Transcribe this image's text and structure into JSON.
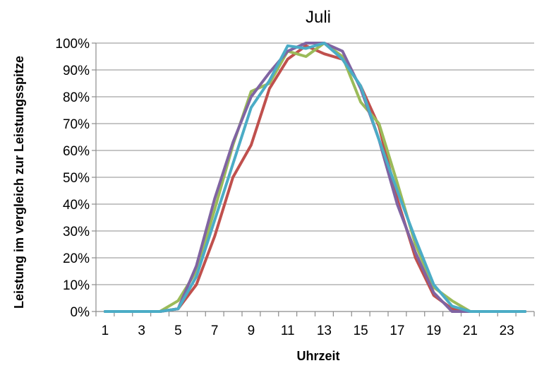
{
  "chart_data": {
    "type": "line",
    "title": "Juli",
    "xlabel": "Uhrzeit",
    "ylabel": "Leistung im vergleich zur Leistungsspitze",
    "x": [
      1,
      2,
      3,
      4,
      5,
      6,
      7,
      8,
      9,
      10,
      11,
      12,
      13,
      14,
      15,
      16,
      17,
      18,
      19,
      20,
      21,
      22,
      23,
      24
    ],
    "xtick_labels": [
      "1",
      "3",
      "5",
      "7",
      "9",
      "11",
      "13",
      "15",
      "17",
      "19",
      "21",
      "23"
    ],
    "ytick_labels": [
      "0%",
      "10%",
      "20%",
      "30%",
      "40%",
      "50%",
      "60%",
      "70%",
      "80%",
      "90%",
      "100%"
    ],
    "ylim": [
      0,
      1
    ],
    "grid": true,
    "legend": "none",
    "series": [
      {
        "color": "#c0504d",
        "values": [
          0,
          0,
          0,
          0,
          0.01,
          0.1,
          0.28,
          0.5,
          0.62,
          0.83,
          0.94,
          0.99,
          0.96,
          0.94,
          0.84,
          0.69,
          0.42,
          0.2,
          0.06,
          0.01,
          0,
          0,
          0,
          0
        ]
      },
      {
        "color": "#9bbb59",
        "values": [
          0,
          0,
          0,
          0,
          0.04,
          0.15,
          0.38,
          0.62,
          0.82,
          0.85,
          0.97,
          0.95,
          1.0,
          0.95,
          0.78,
          0.7,
          0.48,
          0.25,
          0.09,
          0.04,
          0,
          0,
          0,
          0
        ]
      },
      {
        "color": "#8064a2",
        "values": [
          0,
          0,
          0,
          0,
          0.01,
          0.17,
          0.42,
          0.63,
          0.8,
          0.89,
          0.97,
          1.0,
          1.0,
          0.97,
          0.83,
          0.64,
          0.4,
          0.22,
          0.07,
          0,
          0,
          0,
          0,
          0
        ]
      },
      {
        "color": "#4bacc6",
        "values": [
          0,
          0,
          0,
          0,
          0.01,
          0.13,
          0.34,
          0.55,
          0.76,
          0.86,
          0.99,
          0.98,
          1.0,
          0.94,
          0.84,
          0.64,
          0.45,
          0.27,
          0.1,
          0.02,
          0,
          0,
          0,
          0
        ]
      }
    ]
  }
}
